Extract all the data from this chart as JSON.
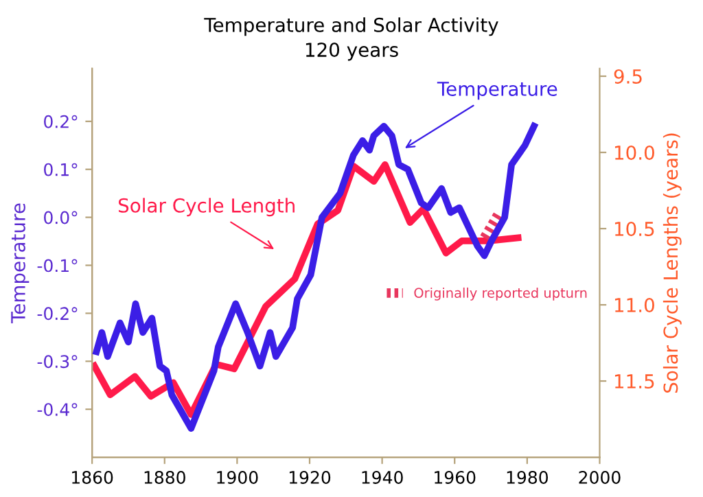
{
  "chart_data": {
    "type": "line",
    "title": "Temperature and Solar Activity",
    "subtitle": "120 years",
    "ylabel": "Temperature",
    "y2label": "Solar Cycle Lengths (years)",
    "xlim": [
      1860,
      2000
    ],
    "xticks": [
      1860,
      1880,
      1900,
      1920,
      1940,
      1960,
      1980,
      2000
    ],
    "ylim": [
      -0.5,
      0.31
    ],
    "yticks": [
      {
        "value": -0.4,
        "label": "-0.4°"
      },
      {
        "value": -0.3,
        "label": "-0.3°"
      },
      {
        "value": -0.2,
        "label": "-0.2°"
      },
      {
        "value": -0.1,
        "label": "-0.1°"
      },
      {
        "value": 0.0,
        "label": "0.0°"
      },
      {
        "value": 0.1,
        "label": "0.1°"
      },
      {
        "value": 0.2,
        "label": "0.2°"
      }
    ],
    "y2lim": [
      12.0,
      9.45
    ],
    "y2ticks": [
      9.5,
      {
        "value": 10.0,
        "label": "10.0"
      },
      10.5,
      {
        "value": 11.0,
        "label": "11.0"
      },
      11.5
    ],
    "grid": false,
    "legend": "right",
    "line_style": "solid",
    "marker": "none",
    "series": [
      {
        "name": "Temperature",
        "color": "#3b1ee6",
        "x": [
          1861.2,
          1862.7,
          1864.3,
          1867.7,
          1870,
          1872,
          1874,
          1876.5,
          1878.7,
          1880.5,
          1882,
          1887.3,
          1893.6,
          1894.8,
          1899.6,
          1902.9,
          1906.3,
          1909.1,
          1910.7,
          1915.3,
          1916.6,
          1920.3,
          1923.4,
          1928.4,
          1932.1,
          1934.6,
          1936.5,
          1937.7,
          1940.5,
          1942.7,
          1944.6,
          1947.1,
          1950.8,
          1952.7,
          1956.4,
          1958.9,
          1961.3,
          1966.3,
          1968.2,
          1970.1,
          1973.8,
          1975.7,
          1979.4,
          1981.9
        ],
        "values": [
          -0.28,
          -0.24,
          -0.29,
          -0.22,
          -0.26,
          -0.18,
          -0.24,
          -0.21,
          -0.31,
          -0.32,
          -0.37,
          -0.44,
          -0.32,
          -0.27,
          -0.18,
          -0.24,
          -0.31,
          -0.24,
          -0.29,
          -0.23,
          -0.17,
          -0.12,
          0.0,
          0.05,
          0.13,
          0.16,
          0.14,
          0.17,
          0.19,
          0.17,
          0.11,
          0.1,
          0.03,
          0.02,
          0.06,
          0.01,
          0.02,
          -0.06,
          -0.08,
          -0.05,
          0.0,
          0.11,
          0.15,
          0.19
        ]
      },
      {
        "name": "Solar Cycle Length",
        "color": "#ff1a4a",
        "axis": "y2",
        "x": [
          1860.6,
          1865,
          1871.8,
          1876.2,
          1882.4,
          1887.3,
          1894.2,
          1899.2,
          1907.9,
          1915.9,
          1922.2,
          1927.8,
          1932.1,
          1937.7,
          1940.8,
          1947.7,
          1951.4,
          1957.6,
          1962,
          1969.4,
          1977.5
        ],
        "values": [
          11.4,
          11.59,
          11.47,
          11.6,
          11.51,
          11.72,
          11.39,
          11.42,
          11.01,
          10.83,
          10.47,
          10.38,
          10.09,
          10.19,
          10.08,
          10.46,
          10.37,
          10.66,
          10.58,
          10.58,
          10.56
        ]
      },
      {
        "name": "Originally reported upturn",
        "color": "#e8365d",
        "axis": "y2",
        "line_style": "dotted",
        "x": [
          1968.2,
          1971.9
        ],
        "values": [
          10.56,
          10.41
        ]
      }
    ]
  }
}
